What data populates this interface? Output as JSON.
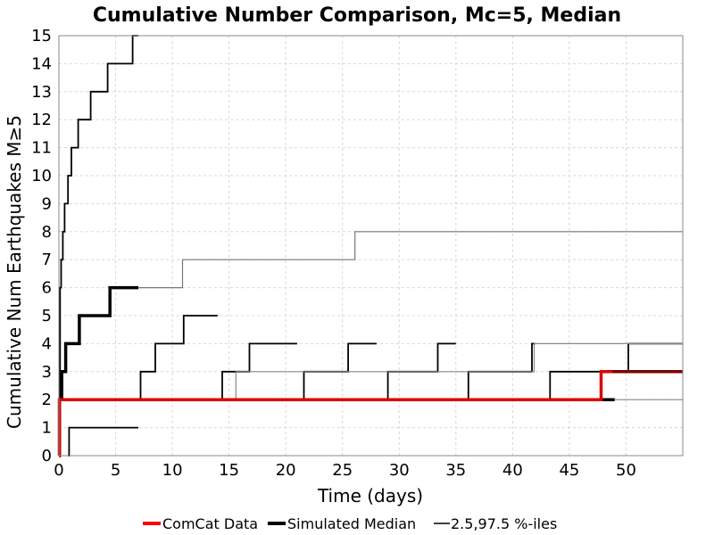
{
  "chart_data": {
    "type": "line",
    "title": "Cumulative Number Comparison, Mc=5, Median",
    "xlabel": "Time (days)",
    "ylabel": "Cumulative Num Earthquakes M≥5",
    "xlim": [
      0,
      55
    ],
    "ylim": [
      0,
      15
    ],
    "xticks": [
      0,
      5,
      10,
      15,
      20,
      25,
      30,
      35,
      40,
      45,
      50
    ],
    "yticks": [
      0,
      1,
      2,
      3,
      4,
      5,
      6,
      7,
      8,
      9,
      10,
      11,
      12,
      13,
      14,
      15
    ],
    "grid": true,
    "legend_position": "bottom",
    "legend": [
      {
        "label": "ComCat Data",
        "color": "#ff0000"
      },
      {
        "label": "Simulated Median",
        "color": "#000000"
      },
      {
        "label": "2.5,97.5 %-iles",
        "color": "#000000"
      }
    ],
    "series": [
      {
        "id": "p975-a",
        "kind": "percentile",
        "color": "#000000",
        "width": 1.8,
        "x": [
          0,
          0.1,
          0.2,
          0.35,
          0.5,
          0.8,
          1.1,
          1.7,
          2.8,
          4.3,
          6.5,
          7.0
        ],
        "y": [
          0,
          6,
          7,
          8,
          9,
          10,
          11,
          12,
          13,
          14,
          15,
          15
        ]
      },
      {
        "id": "p025-a",
        "kind": "percentile",
        "color": "#000000",
        "width": 1.8,
        "x": [
          0.8,
          0.9,
          7.0
        ],
        "y": [
          0,
          1,
          1
        ]
      },
      {
        "id": "median-a",
        "kind": "median",
        "color": "#000000",
        "width": 3.5,
        "x": [
          0,
          0.05,
          0.25,
          0.6,
          1.8,
          4.5,
          7.0
        ],
        "y": [
          0,
          2,
          3,
          4,
          5,
          6,
          6
        ]
      },
      {
        "id": "p975-b",
        "kind": "percentile",
        "color": "#000000",
        "width": 1.8,
        "x": [
          7.0,
          7.2,
          8.5,
          11.0,
          14.0
        ],
        "y": [
          2,
          3,
          4,
          5,
          5
        ]
      },
      {
        "id": "median-b",
        "kind": "median-grey",
        "color": "#777777",
        "width": 1.2,
        "x": [
          7.0,
          10.9,
          26.1,
          55.0
        ],
        "y": [
          6,
          7,
          8,
          8
        ]
      },
      {
        "id": "p975-c",
        "kind": "percentile",
        "color": "#000000",
        "width": 1.8,
        "x": [
          14.0,
          14.4,
          16.8,
          21.0
        ],
        "y": [
          2,
          3,
          4,
          4
        ]
      },
      {
        "id": "p975-d",
        "kind": "percentile",
        "color": "#000000",
        "width": 1.8,
        "x": [
          21.0,
          21.6,
          25.5,
          28.0
        ],
        "y": [
          2,
          3,
          4,
          4
        ]
      },
      {
        "id": "p975-e",
        "kind": "percentile",
        "color": "#000000",
        "width": 1.8,
        "x": [
          28.0,
          29.0,
          33.4,
          35.0
        ],
        "y": [
          2,
          3,
          4,
          4
        ]
      },
      {
        "id": "p975-f",
        "kind": "percentile",
        "color": "#000000",
        "width": 1.8,
        "x": [
          35.0,
          36.1,
          41.7,
          42.0
        ],
        "y": [
          2,
          3,
          4,
          4
        ]
      },
      {
        "id": "p975-g",
        "kind": "percentile",
        "color": "#000000",
        "width": 1.8,
        "x": [
          42.0,
          43.3,
          50.2,
          55.0
        ],
        "y": [
          2,
          3,
          4,
          4
        ]
      },
      {
        "id": "grey-mid",
        "kind": "median-grey",
        "color": "#888888",
        "width": 1.2,
        "x": [
          14.0,
          15.6,
          30.6,
          41.9,
          55.0
        ],
        "y": [
          2,
          3,
          3,
          4,
          4
        ]
      },
      {
        "id": "grey-low",
        "kind": "median-grey",
        "color": "#888888",
        "width": 1.2,
        "x": [
          49.0,
          55.0
        ],
        "y": [
          2,
          2
        ]
      },
      {
        "id": "median-c",
        "kind": "median",
        "color": "#000000",
        "width": 3.5,
        "x": [
          7.0,
          49.0
        ],
        "y": [
          2,
          2
        ]
      },
      {
        "id": "comcat",
        "kind": "data",
        "color": "#dd0000",
        "width": 3.5,
        "x": [
          0,
          0.05,
          47.8,
          55.0
        ],
        "y": [
          0,
          2,
          3,
          3
        ]
      },
      {
        "id": "median-d",
        "kind": "median",
        "color": "#7a0000",
        "width": 3.5,
        "x": [
          48.8,
          55.0
        ],
        "y": [
          3,
          3
        ]
      }
    ]
  }
}
